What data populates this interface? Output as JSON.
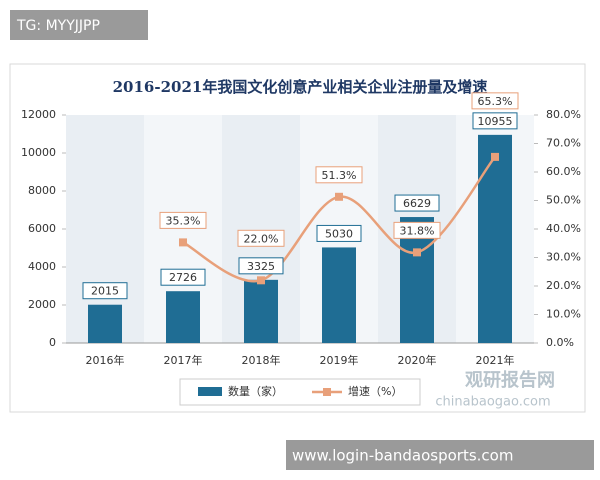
{
  "chart_data": {
    "type": "bar-line",
    "title": "2016-2021年我国文化创意产业相关企业注册量及增速",
    "categories": [
      "2016年",
      "2017年",
      "2018年",
      "2019年",
      "2020年",
      "2021年"
    ],
    "series": [
      {
        "name": "数量（家）",
        "type": "bar",
        "color": "#1f6d94",
        "values": [
          2015,
          2726,
          3325,
          5030,
          6629,
          10955
        ]
      },
      {
        "name": "增速（%）",
        "type": "line",
        "axis": "y2",
        "color": "#e8a07a",
        "values": [
          null,
          35.3,
          22.0,
          51.3,
          31.8,
          65.3
        ],
        "value_labels": [
          null,
          "35.3%",
          "22.0%",
          "51.3%",
          "31.8%",
          "65.3%"
        ]
      }
    ],
    "ylim": [
      0,
      12000
    ],
    "yticks": [
      0,
      2000,
      4000,
      6000,
      8000,
      10000,
      12000
    ],
    "y2lim": [
      0,
      80
    ],
    "y2ticks": [
      {
        "value": 0,
        "label": "0.0%"
      },
      {
        "value": 10,
        "label": "10.0%"
      },
      {
        "value": 20,
        "label": "20.0%"
      },
      {
        "value": 30,
        "label": "30.0%"
      },
      {
        "value": 40,
        "label": "40.0%"
      },
      {
        "value": 50,
        "label": "50.0%"
      },
      {
        "value": 60,
        "label": "60.0%"
      },
      {
        "value": 70,
        "label": "70.0%"
      },
      {
        "value": 80,
        "label": "80.0%"
      }
    ],
    "legend": "bottom"
  },
  "overlays": {
    "tag": "TG: MYYJJPP",
    "url": "www.login-bandaosports.com",
    "watermark": "观研报告网",
    "watermark_site": "chinabaogao.com"
  }
}
